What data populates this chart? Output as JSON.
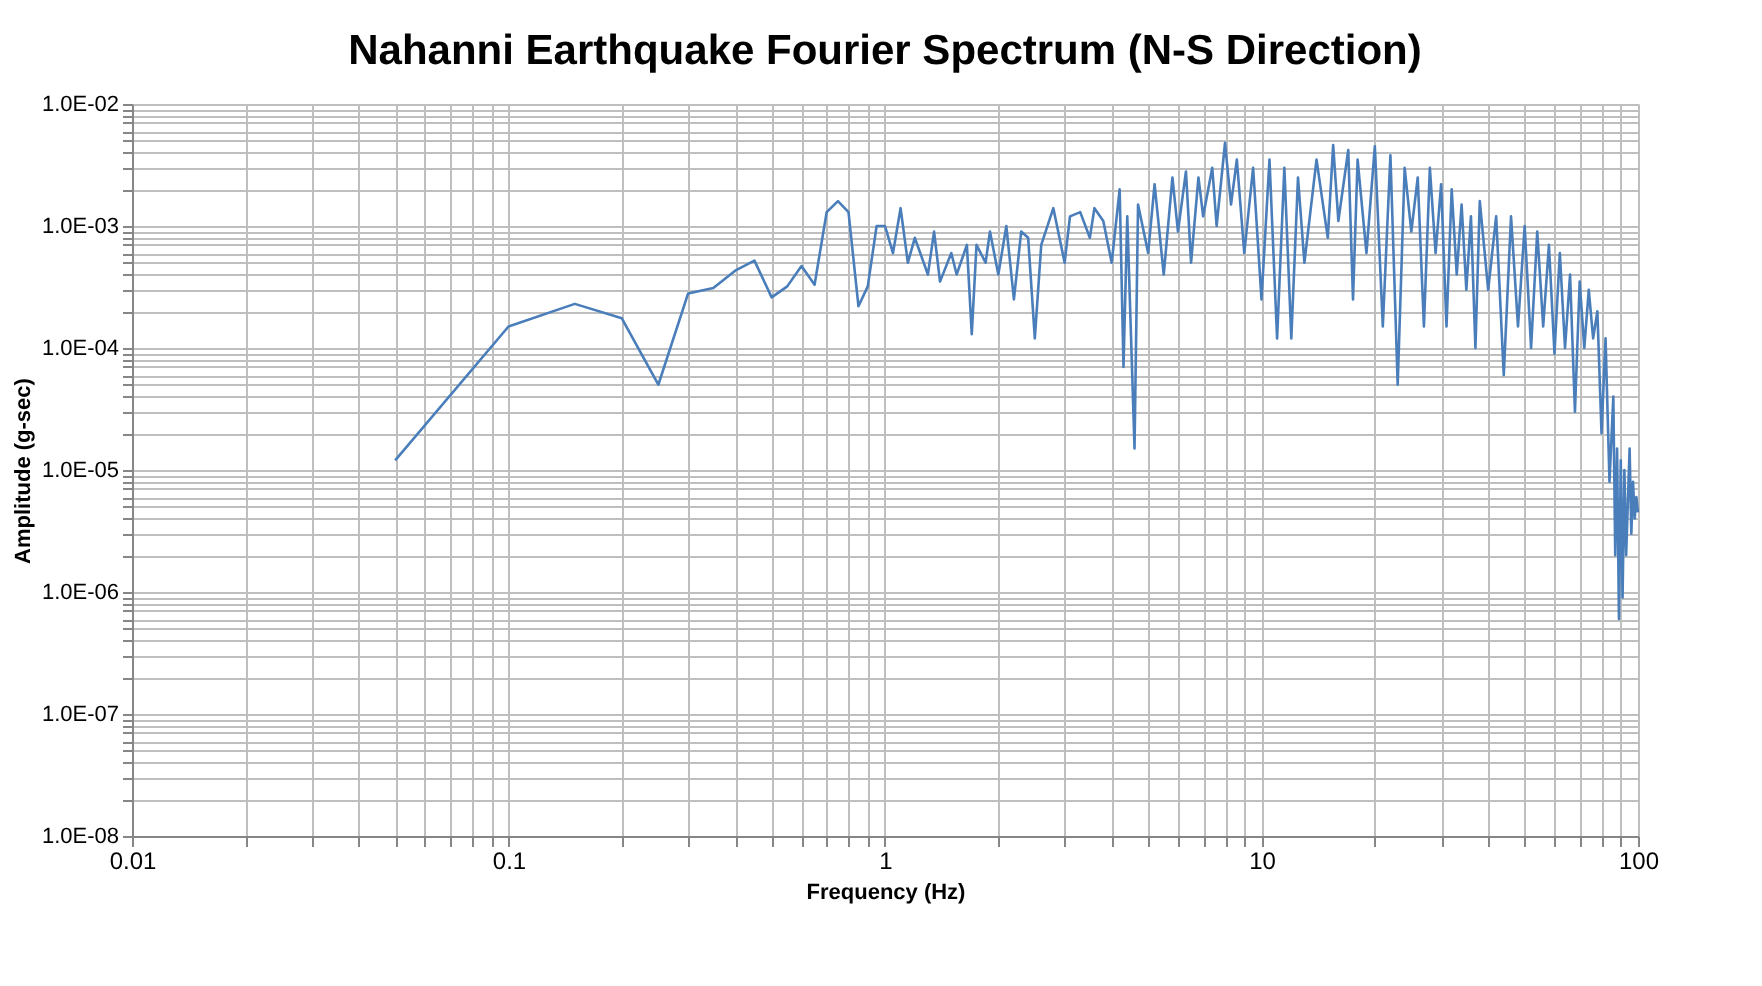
{
  "chart_data": {
    "type": "line",
    "title": "Nahanni Earthquake Fourier Spectrum (N-S Direction)",
    "xlabel": "Frequency (Hz)",
    "ylabel": "Amplitude (g-sec)",
    "log": "xy",
    "grid": true,
    "legend": false,
    "marker": "none",
    "line_style": "solid",
    "xlim": [
      0.01,
      100
    ],
    "ylim": [
      1e-08,
      0.01
    ],
    "xticks": [
      0.01,
      {
        "value": 0.02,
        "label": null
      },
      {
        "value": 0.03,
        "label": null
      },
      {
        "value": 0.04,
        "label": null
      },
      {
        "value": 0.05,
        "label": null
      },
      {
        "value": 0.06,
        "label": null
      },
      {
        "value": 0.07,
        "label": null
      },
      {
        "value": 0.08,
        "label": null
      },
      {
        "value": 0.09,
        "label": null
      },
      0.1,
      {
        "value": 0.2,
        "label": null
      },
      {
        "value": 0.3,
        "label": null
      },
      {
        "value": 0.4,
        "label": null
      },
      {
        "value": 0.5,
        "label": null
      },
      {
        "value": 0.6,
        "label": null
      },
      {
        "value": 0.7,
        "label": null
      },
      {
        "value": 0.8,
        "label": null
      },
      {
        "value": 0.9,
        "label": null
      },
      1,
      {
        "value": 2,
        "label": null
      },
      {
        "value": 3,
        "label": null
      },
      {
        "value": 4,
        "label": null
      },
      {
        "value": 5,
        "label": null
      },
      {
        "value": 6,
        "label": null
      },
      {
        "value": 7,
        "label": null
      },
      {
        "value": 8,
        "label": null
      },
      {
        "value": 9,
        "label": null
      },
      10,
      {
        "value": 20,
        "label": null
      },
      {
        "value": 30,
        "label": null
      },
      {
        "value": 40,
        "label": null
      },
      {
        "value": 50,
        "label": null
      },
      {
        "value": 60,
        "label": null
      },
      {
        "value": 70,
        "label": null
      },
      {
        "value": 80,
        "label": null
      },
      {
        "value": 90,
        "label": null
      },
      100
    ],
    "yticks": [
      {
        "value": 1e-08,
        "label": "1.0E-08"
      },
      {
        "value": 2e-08,
        "label": null
      },
      {
        "value": 3e-08,
        "label": null
      },
      {
        "value": 4e-08,
        "label": null
      },
      {
        "value": 5e-08,
        "label": null
      },
      {
        "value": 6e-08,
        "label": null
      },
      {
        "value": 7e-08,
        "label": null
      },
      {
        "value": 8e-08,
        "label": null
      },
      {
        "value": 9e-08,
        "label": null
      },
      {
        "value": 1e-07,
        "label": "1.0E-07"
      },
      {
        "value": 2e-07,
        "label": null
      },
      {
        "value": 3e-07,
        "label": null
      },
      {
        "value": 4e-07,
        "label": null
      },
      {
        "value": 5e-07,
        "label": null
      },
      {
        "value": 6e-07,
        "label": null
      },
      {
        "value": 7e-07,
        "label": null
      },
      {
        "value": 8e-07,
        "label": null
      },
      {
        "value": 9e-07,
        "label": null
      },
      {
        "value": 1e-06,
        "label": "1.0E-06"
      },
      {
        "value": 2e-06,
        "label": null
      },
      {
        "value": 3e-06,
        "label": null
      },
      {
        "value": 4e-06,
        "label": null
      },
      {
        "value": 5e-06,
        "label": null
      },
      {
        "value": 6e-06,
        "label": null
      },
      {
        "value": 7e-06,
        "label": null
      },
      {
        "value": 8e-06,
        "label": null
      },
      {
        "value": 9e-06,
        "label": null
      },
      {
        "value": 1e-05,
        "label": "1.0E-05"
      },
      {
        "value": 2e-05,
        "label": null
      },
      {
        "value": 3e-05,
        "label": null
      },
      {
        "value": 4e-05,
        "label": null
      },
      {
        "value": 5e-05,
        "label": null
      },
      {
        "value": 6e-05,
        "label": null
      },
      {
        "value": 7e-05,
        "label": null
      },
      {
        "value": 8e-05,
        "label": null
      },
      {
        "value": 9e-05,
        "label": null
      },
      {
        "value": 0.0001,
        "label": "1.0E-04"
      },
      {
        "value": 0.0002,
        "label": null
      },
      {
        "value": 0.0003,
        "label": null
      },
      {
        "value": 0.0004,
        "label": null
      },
      {
        "value": 0.0005,
        "label": null
      },
      {
        "value": 0.0006,
        "label": null
      },
      {
        "value": 0.0007,
        "label": null
      },
      {
        "value": 0.0008,
        "label": null
      },
      {
        "value": 0.0009,
        "label": null
      },
      {
        "value": 0.001,
        "label": "1.0E-03"
      },
      {
        "value": 0.002,
        "label": null
      },
      {
        "value": 0.003,
        "label": null
      },
      {
        "value": 0.004,
        "label": null
      },
      {
        "value": 0.005,
        "label": null
      },
      {
        "value": 0.006,
        "label": null
      },
      {
        "value": 0.007,
        "label": null
      },
      {
        "value": 0.008,
        "label": null
      },
      {
        "value": 0.009,
        "label": null
      },
      {
        "value": 0.01,
        "label": "1.0E-02"
      }
    ],
    "series": [
      {
        "color": "#4a7ebb",
        "x": [
          0.05,
          0.1,
          0.15,
          0.2,
          0.25,
          0.3,
          0.35,
          0.4,
          0.45,
          0.5,
          0.55,
          0.6,
          0.65,
          0.7,
          0.75,
          0.8,
          0.85,
          0.9,
          0.95,
          1.0,
          1.05,
          1.1,
          1.15,
          1.2,
          1.3,
          1.35,
          1.4,
          1.5,
          1.55,
          1.65,
          1.7,
          1.75,
          1.85,
          1.9,
          2.0,
          2.1,
          2.2,
          2.3,
          2.4,
          2.5,
          2.6,
          2.8,
          3.0,
          3.1,
          3.3,
          3.5,
          3.6,
          3.8,
          4.0,
          4.2,
          4.3,
          4.4,
          4.6,
          4.7,
          5.0,
          5.2,
          5.5,
          5.8,
          6.0,
          6.3,
          6.5,
          6.8,
          7.0,
          7.4,
          7.6,
          8.0,
          8.3,
          8.6,
          9.0,
          9.5,
          10,
          10.5,
          11,
          11.5,
          12,
          12.5,
          13,
          14,
          15,
          15.5,
          16,
          17,
          17.5,
          18,
          19,
          20,
          21,
          22,
          23,
          24,
          25,
          26,
          27,
          28,
          29,
          30,
          31,
          32,
          33,
          34,
          35,
          36,
          37,
          38,
          40,
          42,
          44,
          46,
          48,
          50,
          52,
          54,
          56,
          58,
          60,
          62,
          64,
          66,
          68,
          70,
          72,
          74,
          76,
          78,
          80,
          82,
          84,
          86,
          87,
          88,
          89,
          90,
          91,
          92,
          93,
          95,
          96,
          97,
          98,
          99,
          100
        ],
        "values": [
          1.2e-05,
          0.00015,
          0.00023,
          0.000175,
          5e-05,
          0.00028,
          0.00031,
          0.00043,
          0.00052,
          0.00026,
          0.00032,
          0.00047,
          0.00033,
          0.0013,
          0.0016,
          0.0013,
          0.00022,
          0.00032,
          0.001,
          0.001,
          0.0006,
          0.0014,
          0.0005,
          0.0008,
          0.0004,
          0.0009,
          0.00035,
          0.0006,
          0.0004,
          0.0007,
          0.00013,
          0.0007,
          0.0005,
          0.0009,
          0.0004,
          0.001,
          0.00025,
          0.0009,
          0.0008,
          0.00012,
          0.0007,
          0.0014,
          0.0005,
          0.0012,
          0.0013,
          0.0008,
          0.0014,
          0.0011,
          0.0005,
          0.002,
          7e-05,
          0.0012,
          1.5e-05,
          0.0015,
          0.0006,
          0.0022,
          0.0004,
          0.0025,
          0.0009,
          0.0028,
          0.0005,
          0.0025,
          0.0012,
          0.003,
          0.001,
          0.0048,
          0.0015,
          0.0035,
          0.0006,
          0.003,
          0.00025,
          0.0035,
          0.00012,
          0.003,
          0.00012,
          0.0025,
          0.0005,
          0.0035,
          0.0008,
          0.0046,
          0.0011,
          0.0042,
          0.00025,
          0.0035,
          0.0006,
          0.0045,
          0.00015,
          0.0038,
          5e-05,
          0.003,
          0.0009,
          0.0025,
          0.00015,
          0.003,
          0.0006,
          0.0022,
          0.00015,
          0.002,
          0.0004,
          0.0015,
          0.0003,
          0.0012,
          0.0001,
          0.0016,
          0.0003,
          0.0012,
          6e-05,
          0.0012,
          0.00015,
          0.001,
          0.0001,
          0.0009,
          0.00015,
          0.0007,
          9e-05,
          0.0006,
          0.0001,
          0.0004,
          3e-05,
          0.00035,
          0.0001,
          0.0003,
          0.00012,
          0.0002,
          2e-05,
          0.00012,
          8e-06,
          4e-05,
          2e-06,
          1.5e-05,
          6e-07,
          1.2e-05,
          9e-07,
          1e-05,
          2e-06,
          1.5e-05,
          3e-06,
          8e-06,
          4e-06,
          6e-06,
          4.5e-06
        ]
      }
    ]
  }
}
